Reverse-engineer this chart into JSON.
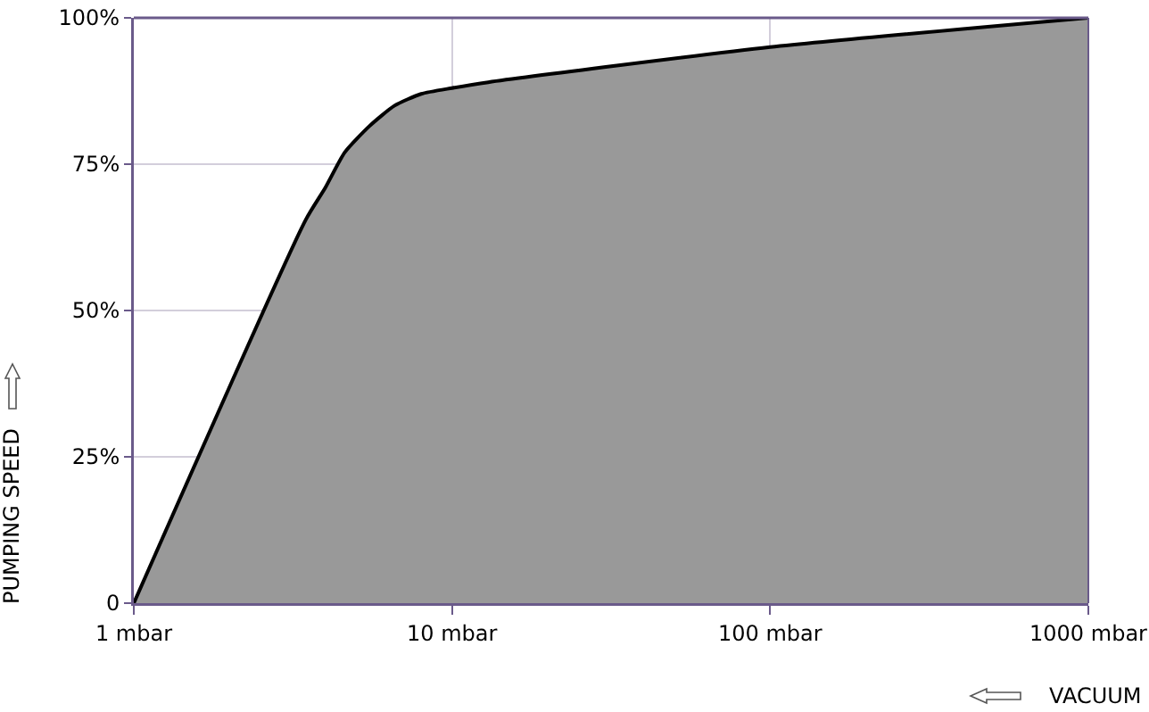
{
  "chart_data": {
    "type": "area",
    "xlabel": "VACUUM",
    "ylabel": "PUMPING SPEED",
    "x": [
      1,
      3.47,
      4,
      4.6,
      5.5,
      6.6,
      8,
      10,
      13,
      100,
      1000
    ],
    "series": [
      {
        "color": "#999999",
        "values": [
          0,
          65.5,
          71,
          77,
          81.5,
          85,
          87,
          88,
          89,
          95,
          100
        ]
      }
    ],
    "xlim": [
      1,
      1000
    ],
    "xticks": [
      {
        "value": 1,
        "label": "1 mbar"
      },
      {
        "value": 10,
        "label": "10 mbar"
      },
      {
        "value": 100,
        "label": "100 mbar"
      },
      {
        "value": 1000,
        "label": "1000 mbar"
      }
    ],
    "ylim": [
      0,
      100
    ],
    "yticks": [
      {
        "value": 0,
        "label": "0"
      },
      {
        "value": 25,
        "label": "25%"
      },
      {
        "value": 50,
        "label": "50%"
      },
      {
        "value": 75,
        "label": "75%"
      },
      {
        "value": 100,
        "label": "100%"
      }
    ],
    "log": "x",
    "grid": true,
    "marker": "none",
    "line_style": "solid"
  }
}
